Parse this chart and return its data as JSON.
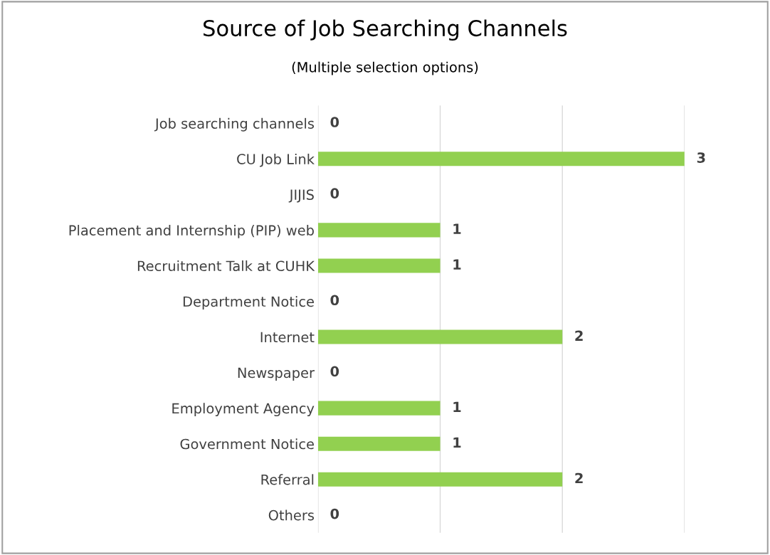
{
  "chart_data": {
    "type": "bar",
    "orientation": "horizontal",
    "title": "Source of Job Searching Channels",
    "subtitle": "(Multiple selection options)",
    "categories": [
      "Job searching channels",
      "CU Job Link",
      "JIJIS",
      "Placement and Internship (PIP) web",
      "Recruitment Talk at CUHK",
      "Department Notice",
      "Internet",
      "Newspaper",
      "Employment Agency",
      "Government Notice",
      "Referral",
      "Others"
    ],
    "values": [
      0,
      3,
      0,
      1,
      1,
      0,
      2,
      0,
      1,
      1,
      2,
      0
    ],
    "color": "#92d050",
    "data_labels": true,
    "grid": "x",
    "tick_labels": "y",
    "xlim": [
      0,
      3
    ],
    "xticks": [
      {
        "value": 0,
        "label": null
      },
      {
        "value": 1,
        "label": null
      },
      {
        "value": 2,
        "label": null
      },
      {
        "value": 3,
        "label": null
      }
    ]
  }
}
